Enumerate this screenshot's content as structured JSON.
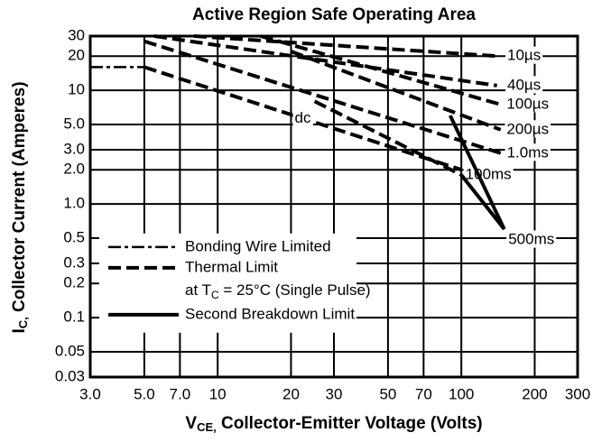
{
  "chart_data": {
    "type": "line",
    "title": "Active Region Safe Operating Area",
    "ylabel": {
      "main": "I",
      "sub": "C,",
      "rest": " Collector Current (Amperes)"
    },
    "xlabel": {
      "main": "V",
      "sub": "CE,",
      "rest": " Collector-Emitter Voltage (Volts)"
    },
    "xscale": "log",
    "yscale": "log",
    "grid": true,
    "xlim": [
      3,
      300
    ],
    "ylim": [
      0.03,
      30
    ],
    "xticks": [
      {
        "value": 3,
        "label": "3.0"
      },
      {
        "value": 5,
        "label": "5.0"
      },
      {
        "value": 7,
        "label": "7.0"
      },
      10,
      20,
      30,
      50,
      70,
      100,
      200,
      300
    ],
    "yticks": [
      0.03,
      0.05,
      0.1,
      0.2,
      0.3,
      0.5,
      {
        "value": 1,
        "label": "1.0"
      },
      {
        "value": 2,
        "label": "2.0"
      },
      {
        "value": 3,
        "label": "3.0"
      },
      {
        "value": 5,
        "label": "5.0"
      },
      10,
      20,
      30
    ],
    "series": [
      {
        "name": "10µs",
        "style": "dash",
        "x": [
          8,
          140
        ],
        "values": [
          30,
          20
        ]
      },
      {
        "name": "40µs",
        "style": "dash",
        "x": [
          5.5,
          140
        ],
        "values": [
          30,
          11
        ]
      },
      {
        "name": "100µs",
        "style": "dash",
        "x": [
          15,
          145
        ],
        "values": [
          30,
          7.5
        ]
      },
      {
        "name": "200µs",
        "style": "dash",
        "x": [
          20,
          145
        ],
        "values": [
          22,
          4.5
        ]
      },
      {
        "name": "1.0ms",
        "style": "dash",
        "x": [
          5,
          145
        ],
        "values": [
          27,
          2.8
        ]
      },
      {
        "name": "dc",
        "style": "dash",
        "label_side": "middle",
        "x": [
          5,
          100
        ],
        "values": [
          16,
          2
        ]
      },
      {
        "name": "100ms",
        "style": "dash",
        "x": [
          25,
          100
        ],
        "values": [
          8,
          1.8
        ]
      },
      {
        "style": "dash-dot",
        "x": [
          3,
          5
        ],
        "values": [
          16,
          16
        ]
      },
      {
        "name": "500ms",
        "style": "solid",
        "x": [
          90,
          150
        ],
        "values": [
          6,
          0.6
        ]
      },
      {
        "style": "solid",
        "x": [
          100,
          150
        ],
        "values": [
          1.8,
          0.6
        ]
      }
    ],
    "legend": {
      "position": "lower left",
      "entries": [
        {
          "name": "Bonding Wire Limited",
          "style": "dash-dot"
        },
        {
          "name": "Thermal Limit",
          "style": "dash"
        },
        {
          "name": "Second Breakdown Limit",
          "style": "solid"
        }
      ],
      "note": [
        "at T",
        "C",
        " = 25°C (Single Pulse)"
      ]
    }
  }
}
